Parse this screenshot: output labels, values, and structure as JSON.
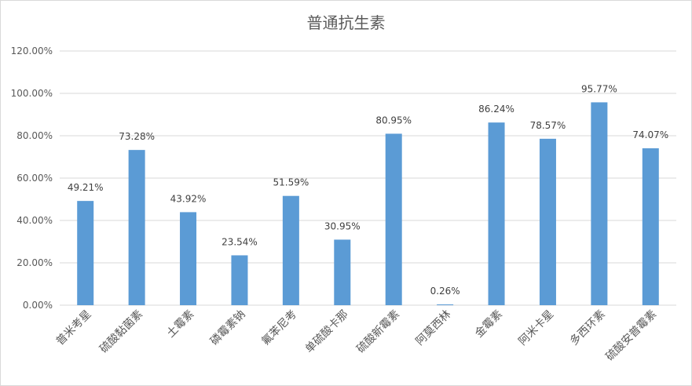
{
  "chart_data": {
    "type": "bar",
    "title": "普通抗生素",
    "categories": [
      "普米考星",
      "硫酸黏菌素",
      "土霉素",
      "磷霉素钠",
      "氟苯尼考",
      "单硫酸卡那",
      "硫酸新霉素",
      "阿莫西林",
      "金霉素",
      "阿米卡星",
      "多西环素",
      "硫酸安普霉素"
    ],
    "values": [
      49.21,
      73.28,
      43.92,
      23.54,
      51.59,
      30.95,
      80.95,
      0.26,
      86.24,
      78.57,
      95.77,
      74.07
    ],
    "data_labels": [
      "49.21%",
      "73.28%",
      "43.92%",
      "23.54%",
      "51.59%",
      "30.95%",
      "80.95%",
      "0.26%",
      "86.24%",
      "78.57%",
      "95.77%",
      "74.07%"
    ],
    "ylim": [
      0,
      120
    ],
    "yticks": [
      "0.00%",
      "20.00%",
      "40.00%",
      "60.00%",
      "80.00%",
      "100.00%",
      "120.00%"
    ],
    "grid": true,
    "bar_color": "#5b9bd5",
    "grid_color": "#d9d9d9"
  }
}
